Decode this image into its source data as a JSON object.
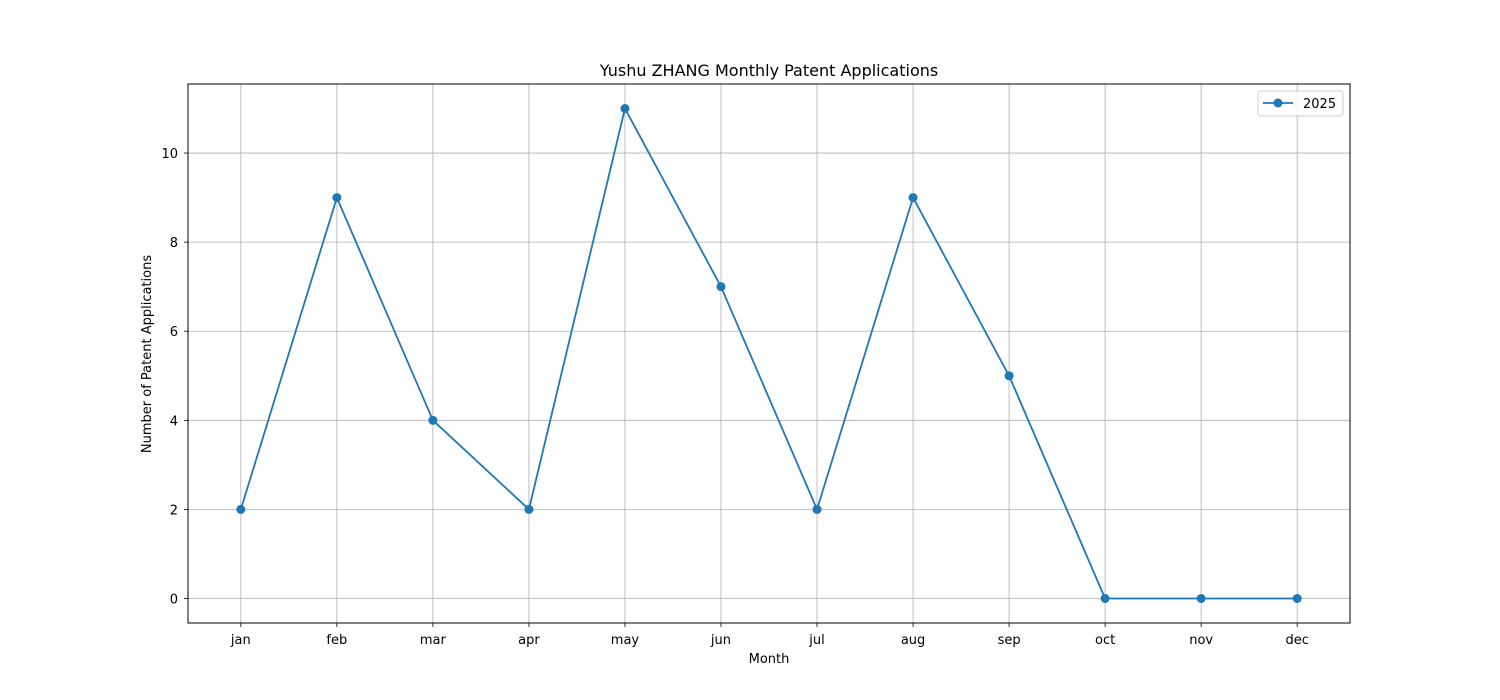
{
  "chart_data": {
    "type": "line",
    "title": "Yushu ZHANG Monthly Patent Applications",
    "xlabel": "Month",
    "ylabel": "Number of Patent Applications",
    "categories": [
      "jan",
      "feb",
      "mar",
      "apr",
      "may",
      "jun",
      "jul",
      "aug",
      "sep",
      "oct",
      "nov",
      "dec"
    ],
    "series": [
      {
        "name": "2025",
        "values": [
          2,
          9,
          4,
          2,
          11,
          7,
          2,
          9,
          5,
          0,
          0,
          0
        ],
        "color": "#1f77b4",
        "marker": "circle"
      }
    ],
    "ylim": [
      -0.55,
      11.55
    ],
    "yticks": [
      0,
      2,
      4,
      6,
      8,
      10
    ],
    "grid": true,
    "legend_position": "top-right"
  }
}
